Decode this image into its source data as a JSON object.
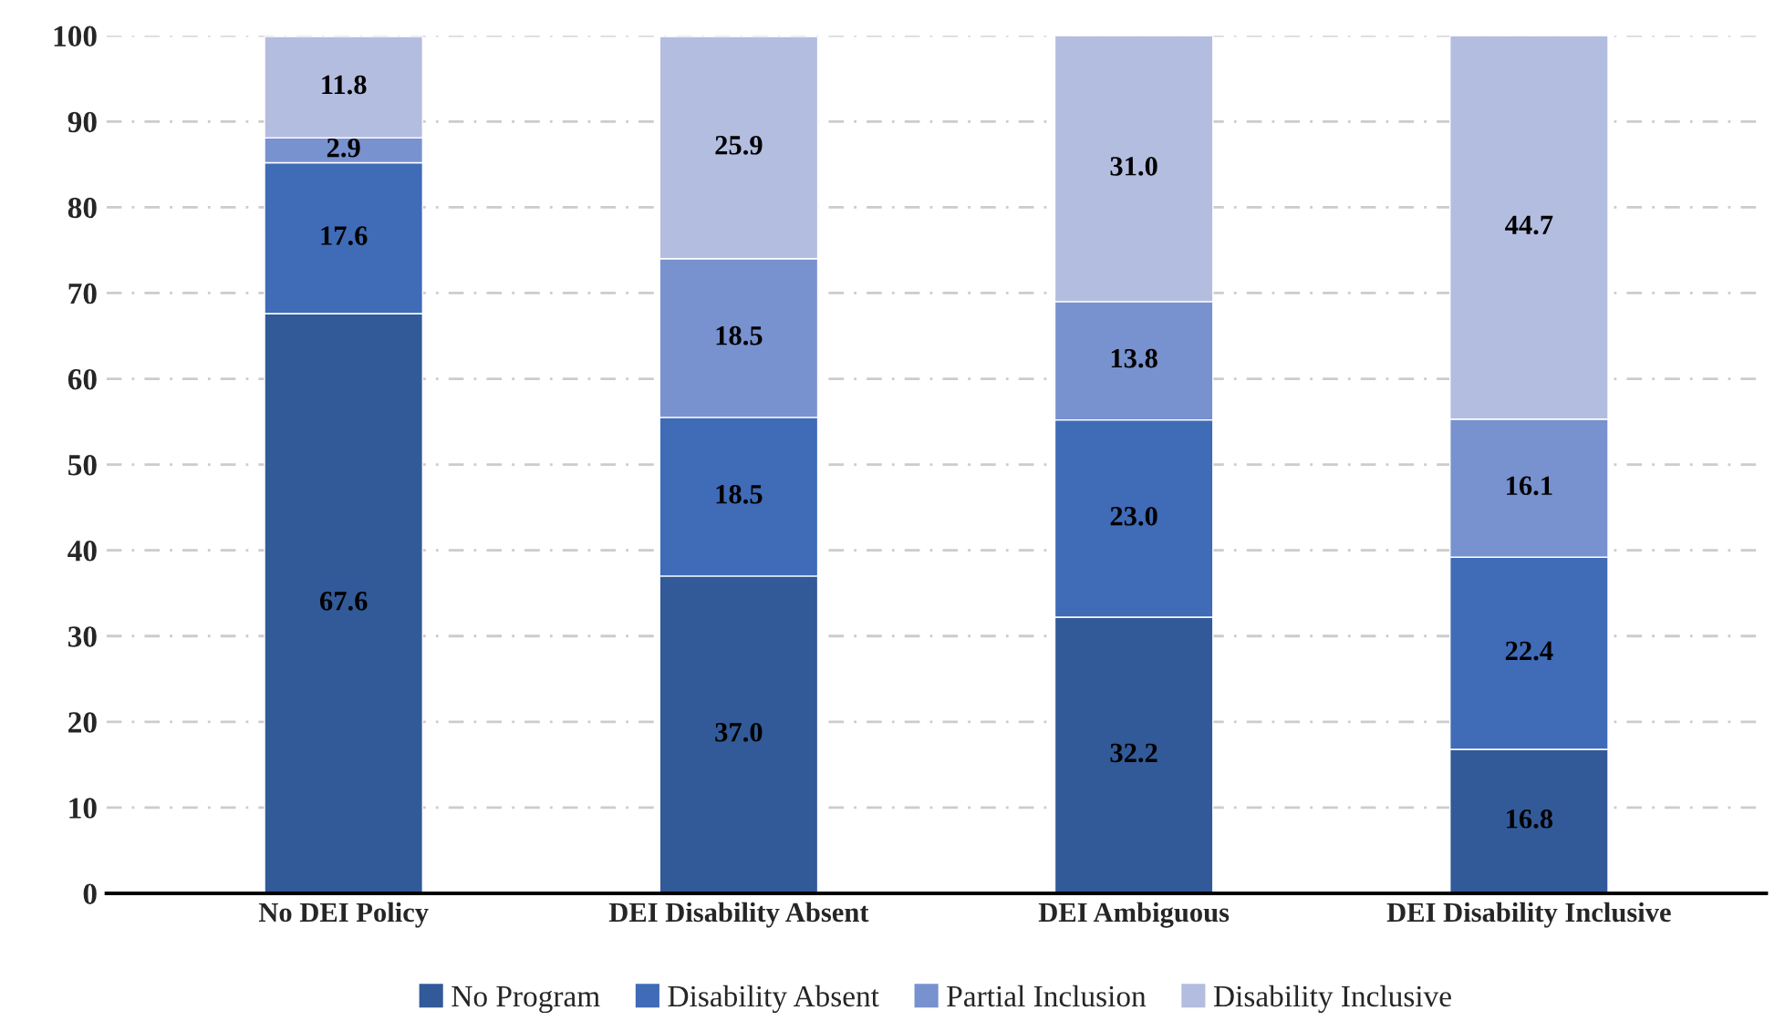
{
  "chart_data": {
    "type": "bar",
    "stacked": true,
    "categories": [
      "No DEI Policy",
      "DEI Disability Absent",
      "DEI Ambiguous",
      "DEI Disability Inclusive"
    ],
    "series": [
      {
        "name": "No Program",
        "color": "#325a99",
        "values": [
          67.6,
          37.0,
          32.2,
          16.8
        ],
        "value_labels": [
          "67.6",
          "37.0",
          "32.2",
          "16.8"
        ]
      },
      {
        "name": "Disability Absent",
        "color": "#3f6bb7",
        "values": [
          17.6,
          18.5,
          23.0,
          22.4
        ],
        "value_labels": [
          "17.6",
          "18.5",
          "23.0",
          "22.4"
        ]
      },
      {
        "name": "Partial Inclusion",
        "color": "#7891cf",
        "values": [
          2.9,
          18.5,
          13.8,
          16.1
        ],
        "value_labels": [
          "2.9",
          "18.5",
          "13.8",
          "16.1"
        ]
      },
      {
        "name": "Disability Inclusive",
        "color": "#b3bde0",
        "values": [
          11.8,
          25.9,
          31.0,
          44.7
        ],
        "value_labels": [
          "11.8",
          "25.9",
          "31.0",
          "44.7"
        ]
      }
    ],
    "ylim": [
      0,
      100
    ],
    "yticks": [
      0,
      10,
      20,
      30,
      40,
      50,
      60,
      70,
      80,
      90,
      100
    ],
    "grid": "y",
    "legend": "bottom"
  }
}
